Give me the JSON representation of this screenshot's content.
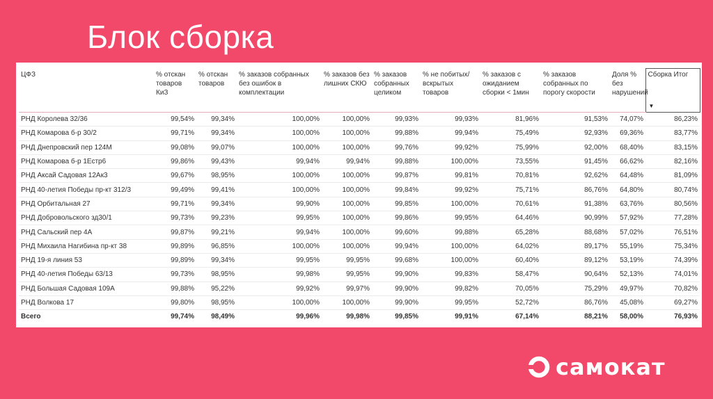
{
  "slide_title": "Блок сборка",
  "brand": {
    "name": "самокат",
    "logo_icon": "samokat-logo-icon",
    "color": "#ffffff"
  },
  "background_color": "#f2486a",
  "table": {
    "headers": [
      "ЦФЗ",
      "% отскан товаров КиЗ",
      "% отскан товаров",
      "% заказов собранных без ошибок в комплектации",
      "% заказов без лишних СКЮ",
      "% заказов собранных целиком",
      "% не побитых/ вскрытых товаров",
      "% заказов с ожиданием сборки < 1мин",
      "% заказов собранных по порогу скорости",
      "Доля % без нарушений",
      "Сборка Итог"
    ],
    "sorted_column": "Сборка Итог",
    "rows": [
      [
        "РНД Королева 32/36",
        "99,54%",
        "99,34%",
        "100,00%",
        "100,00%",
        "99,93%",
        "99,93%",
        "81,96%",
        "91,53%",
        "74,07%",
        "86,23%"
      ],
      [
        "РНД Комарова б-р 30/2",
        "99,71%",
        "99,34%",
        "100,00%",
        "100,00%",
        "99,88%",
        "99,94%",
        "75,49%",
        "92,93%",
        "69,36%",
        "83,77%"
      ],
      [
        "РНД Днепровский пер 124М",
        "99,08%",
        "99,07%",
        "100,00%",
        "100,00%",
        "99,76%",
        "99,92%",
        "75,99%",
        "92,00%",
        "68,40%",
        "83,15%"
      ],
      [
        "РНД Комарова б-р 1Естр6",
        "99,86%",
        "99,43%",
        "99,94%",
        "99,94%",
        "99,88%",
        "100,00%",
        "73,55%",
        "91,45%",
        "66,62%",
        "82,16%"
      ],
      [
        "РНД Аксай Садовая 12Ак3",
        "99,67%",
        "98,95%",
        "100,00%",
        "100,00%",
        "99,87%",
        "99,81%",
        "70,81%",
        "92,62%",
        "64,48%",
        "81,09%"
      ],
      [
        "РНД 40-летия Победы пр-кт 312/3",
        "99,49%",
        "99,41%",
        "100,00%",
        "100,00%",
        "99,84%",
        "99,92%",
        "75,71%",
        "86,76%",
        "64,80%",
        "80,74%"
      ],
      [
        "РНД Орбитальная 27",
        "99,71%",
        "99,34%",
        "99,90%",
        "100,00%",
        "99,85%",
        "100,00%",
        "70,61%",
        "91,38%",
        "63,76%",
        "80,56%"
      ],
      [
        "РНД Добровольского зд30/1",
        "99,73%",
        "99,23%",
        "99,95%",
        "100,00%",
        "99,86%",
        "99,95%",
        "64,46%",
        "90,99%",
        "57,92%",
        "77,28%"
      ],
      [
        "РНД Сальский пер 4А",
        "99,87%",
        "99,21%",
        "99,94%",
        "100,00%",
        "99,60%",
        "99,88%",
        "65,28%",
        "88,68%",
        "57,02%",
        "76,51%"
      ],
      [
        "РНД Михаила Нагибина пр-кт 38",
        "99,89%",
        "96,85%",
        "100,00%",
        "100,00%",
        "99,94%",
        "100,00%",
        "64,02%",
        "89,17%",
        "55,19%",
        "75,34%"
      ],
      [
        "РНД 19-я линия 53",
        "99,89%",
        "99,34%",
        "99,95%",
        "99,95%",
        "99,68%",
        "100,00%",
        "60,40%",
        "89,12%",
        "53,19%",
        "74,39%"
      ],
      [
        "РНД 40-летия Победы 63/13",
        "99,73%",
        "98,95%",
        "99,98%",
        "99,95%",
        "99,90%",
        "99,83%",
        "58,47%",
        "90,64%",
        "52,13%",
        "74,01%"
      ],
      [
        "РНД Большая Садовая 109А",
        "99,88%",
        "95,22%",
        "99,92%",
        "99,97%",
        "99,90%",
        "99,82%",
        "70,05%",
        "75,29%",
        "49,97%",
        "70,82%"
      ],
      [
        "РНД Волкова 17",
        "99,80%",
        "98,95%",
        "100,00%",
        "100,00%",
        "99,90%",
        "99,95%",
        "52,72%",
        "86,76%",
        "45,08%",
        "69,27%"
      ]
    ],
    "total": [
      "Всего",
      "99,74%",
      "98,49%",
      "99,96%",
      "99,98%",
      "99,85%",
      "99,91%",
      "67,14%",
      "88,21%",
      "58,00%",
      "76,93%"
    ]
  }
}
